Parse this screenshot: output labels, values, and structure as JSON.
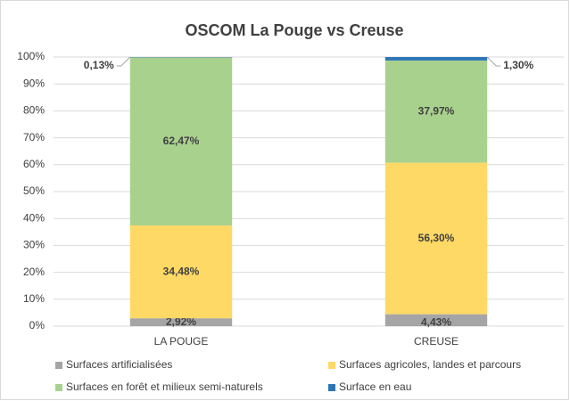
{
  "chart_data": {
    "type": "stacked_bar",
    "title": "OSCOM La Pouge vs Creuse",
    "categories": [
      "LA POUGE",
      "CREUSE"
    ],
    "series": [
      {
        "name": "Surfaces artificialisées",
        "color": "#a5a5a5",
        "values": [
          2.92,
          4.43
        ],
        "value_labels": [
          "2,92%",
          "4,43%"
        ]
      },
      {
        "name": "Surfaces agricoles, landes et parcours",
        "color": "#ffd966",
        "values": [
          34.48,
          56.3
        ],
        "value_labels": [
          "34,48%",
          "56,30%"
        ]
      },
      {
        "name": "Surfaces en forêt et milieux semi-naturels",
        "color": "#a9d18e",
        "values": [
          62.47,
          37.97
        ],
        "value_labels": [
          "62,47%",
          "37,97%"
        ]
      },
      {
        "name": "Surface en eau",
        "color": "#2e75b6",
        "values": [
          0.13,
          1.3
        ],
        "value_labels": [
          "0,13%",
          "1,30%"
        ]
      }
    ],
    "ylim": [
      0,
      100
    ],
    "yticks": [
      {
        "value": 0,
        "label": "0%"
      },
      {
        "value": 10,
        "label": "10%"
      },
      {
        "value": 20,
        "label": "20%"
      },
      {
        "value": 30,
        "label": "30%"
      },
      {
        "value": 40,
        "label": "40%"
      },
      {
        "value": 50,
        "label": "50%"
      },
      {
        "value": 60,
        "label": "60%"
      },
      {
        "value": 70,
        "label": "70%"
      },
      {
        "value": 80,
        "label": "80%"
      },
      {
        "value": 90,
        "label": "90%"
      },
      {
        "value": 100,
        "label": "100%"
      }
    ],
    "grid": true,
    "legend": "bottom"
  }
}
